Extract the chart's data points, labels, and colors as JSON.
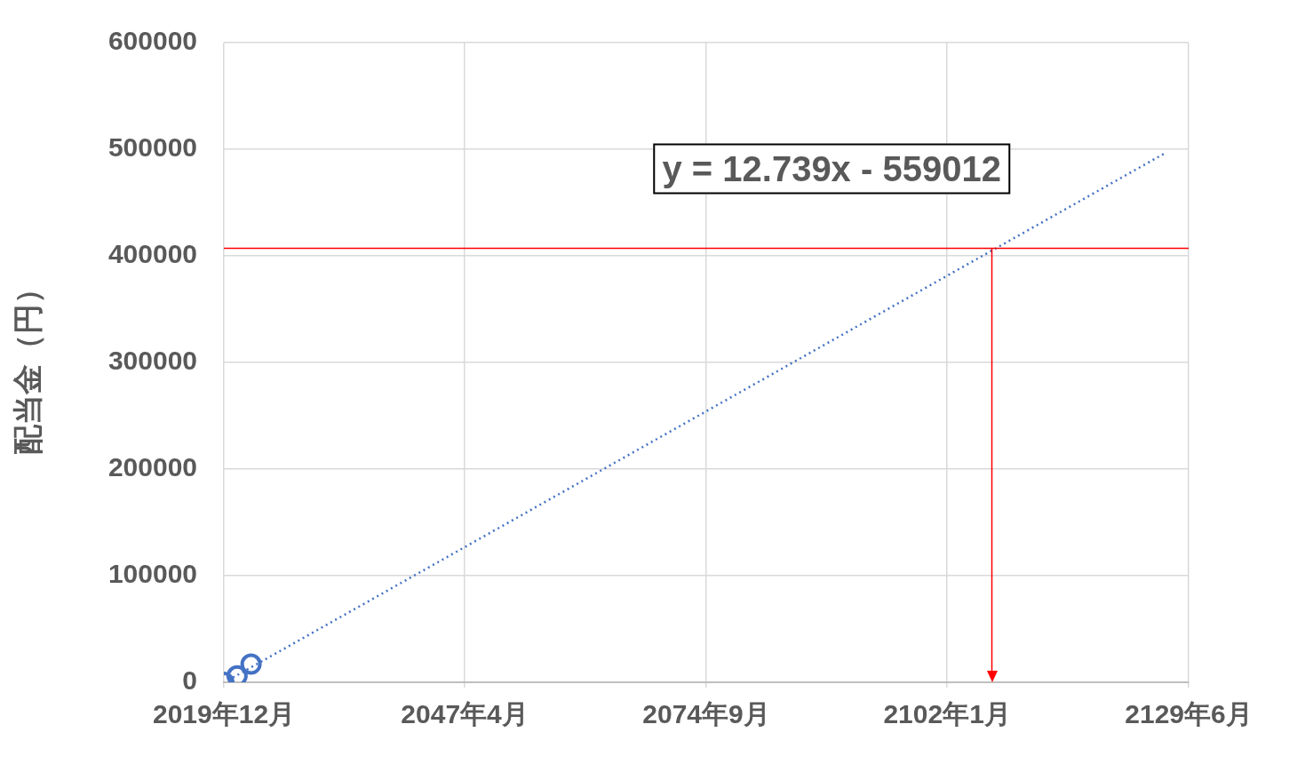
{
  "chart_data": {
    "type": "scatter",
    "ylabel": "配当金（円）",
    "x": [
      "2019-12",
      "2021-06",
      "2023-01"
    ],
    "series": [
      {
        "color": "#4472c4",
        "values": [
          0,
          6000,
          17000
        ]
      },
      {
        "type": "line",
        "color": "#4472c4",
        "line_style": "dotted",
        "marker": "none",
        "x": [
          "2020-06",
          "2126-09"
        ],
        "values": [
          2000,
          496000
        ]
      }
    ],
    "marker": "circle",
    "xlim": [
      "2019-12",
      "2129-06"
    ],
    "xticks": [
      {
        "value": "2019-12",
        "label": "2019年12月"
      },
      {
        "value": "2047-04",
        "label": "2047年4月"
      },
      {
        "value": "2074-09",
        "label": "2074年9月"
      },
      {
        "value": "2102-01",
        "label": "2102年1月"
      },
      {
        "value": "2129-06",
        "label": "2129年6月"
      }
    ],
    "ylim": [
      0,
      600000
    ],
    "yticks": [
      0,
      100000,
      200000,
      300000,
      400000,
      500000,
      600000
    ],
    "grid": true,
    "legend": false,
    "ref_lines": [
      {
        "axis": "y",
        "value": 407000,
        "color": "#ff0000"
      },
      {
        "axis": "x",
        "value": "2107-02",
        "color": "#ff0000"
      }
    ],
    "annotations": [
      "y = 12.739x - 559012"
    ]
  }
}
